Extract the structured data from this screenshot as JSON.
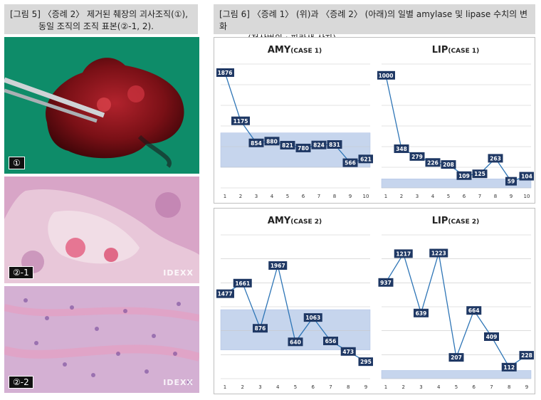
{
  "figure5": {
    "caption_line1": "[그림 5] 〈증례 2〉 제거된 췌장의  괴사조직(①),",
    "caption_line2": "동일 조직의 조직 표본(②-1, 2).",
    "photos": [
      {
        "label": "①",
        "watermark": ""
      },
      {
        "label": "②-1",
        "watermark": "IDEXX"
      },
      {
        "label": "②-2",
        "watermark": "IDEXX"
      }
    ]
  },
  "figure6": {
    "caption_line1": "[그림 6] 〈증례 1〉 (위)과 〈증례 2〉 (아래)의 일별 amylase 및 lipase 수치의 변화",
    "caption_line2": "(정상범위 : 파란색 상자)."
  },
  "colors": {
    "line": "#2e75b6",
    "label_bg": "#1f3864",
    "normal_band": "#b4c7e7",
    "caption_bg": "#d9d9d9"
  },
  "chart_data": [
    {
      "type": "line",
      "title": "AMY",
      "subtitle": "(CASE 1)",
      "x": [
        1,
        2,
        3,
        4,
        5,
        6,
        7,
        8,
        9,
        10
      ],
      "values": [
        1876,
        1175,
        854,
        880,
        821,
        780,
        824,
        831,
        566,
        621
      ],
      "ylim": [
        200,
        2000
      ],
      "normal_range": [
        500,
        1000
      ],
      "grid": true
    },
    {
      "type": "line",
      "title": "LIP",
      "subtitle": "(CASE 1)",
      "x": [
        1,
        2,
        3,
        4,
        5,
        6,
        7,
        8,
        9,
        10
      ],
      "values": [
        1000,
        348,
        279,
        226,
        208,
        109,
        125,
        263,
        59,
        104
      ],
      "ylim": [
        0,
        1100
      ],
      "normal_range": [
        0,
        80
      ],
      "grid": true
    },
    {
      "type": "line",
      "title": "AMY",
      "subtitle": "(CASE 2)",
      "x": [
        1,
        2,
        3,
        4,
        5,
        6,
        7,
        8,
        9
      ],
      "values": [
        1477,
        1661,
        876,
        1967,
        640,
        1063,
        656,
        473,
        295
      ],
      "ylim": [
        0,
        2500
      ],
      "normal_range": [
        500,
        1200
      ],
      "grid": true
    },
    {
      "type": "line",
      "title": "LIP",
      "subtitle": "(CASE 2)",
      "x": [
        1,
        2,
        3,
        4,
        5,
        6,
        7,
        8,
        9
      ],
      "values": [
        937,
        1217,
        639,
        1223,
        207,
        664,
        409,
        112,
        228
      ],
      "ylim": [
        0,
        1400
      ],
      "normal_range": [
        0,
        80
      ],
      "grid": true
    }
  ]
}
